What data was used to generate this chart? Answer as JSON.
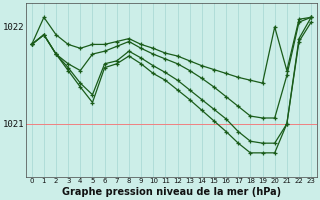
{
  "title": "Graphe pression niveau de la mer (hPa)",
  "background_color": "#cceee8",
  "grid_color_v": "#b0ddd8",
  "grid_color_h": "#f08080",
  "line_color": "#1a5c1a",
  "hours": [
    0,
    1,
    2,
    3,
    4,
    5,
    6,
    7,
    8,
    9,
    10,
    11,
    12,
    13,
    14,
    15,
    16,
    17,
    18,
    19,
    20,
    21,
    22,
    23
  ],
  "series": [
    [
      1021.82,
      1022.1,
      1021.92,
      1021.82,
      1021.78,
      1021.82,
      1021.82,
      1021.85,
      1021.88,
      1021.82,
      1021.78,
      1021.73,
      1021.7,
      1021.65,
      1021.6,
      1021.56,
      1021.52,
      1021.48,
      1021.45,
      1021.42,
      1022.0,
      1021.55,
      1022.08,
      1022.1
    ],
    [
      1021.82,
      1021.92,
      1021.72,
      1021.62,
      1021.55,
      1021.72,
      1021.75,
      1021.8,
      1021.85,
      1021.78,
      1021.72,
      1021.67,
      1021.62,
      1021.55,
      1021.47,
      1021.38,
      1021.28,
      1021.18,
      1021.08,
      1021.06,
      1021.06,
      1021.5,
      1022.05,
      1022.1
    ],
    [
      1021.82,
      1021.92,
      1021.72,
      1021.58,
      1021.42,
      1021.3,
      1021.62,
      1021.65,
      1021.75,
      1021.68,
      1021.6,
      1021.53,
      1021.45,
      1021.35,
      1021.25,
      1021.15,
      1021.05,
      1020.92,
      1020.82,
      1020.8,
      1020.8,
      1021.0,
      1021.88,
      1022.1
    ],
    [
      1021.82,
      1021.92,
      1021.72,
      1021.55,
      1021.38,
      1021.22,
      1021.58,
      1021.62,
      1021.7,
      1021.62,
      1021.52,
      1021.45,
      1021.35,
      1021.25,
      1021.14,
      1021.03,
      1020.92,
      1020.8,
      1020.7,
      1020.7,
      1020.7,
      1021.0,
      1021.85,
      1022.05
    ]
  ],
  "ytick_positions": [
    1021.0,
    1022.0
  ],
  "ytick_labels": [
    "1021",
    "1022"
  ],
  "ylim": [
    1020.45,
    1022.25
  ],
  "xlim": [
    -0.5,
    23.5
  ],
  "xtick_labels": [
    "0",
    "1",
    "2",
    "3",
    "4",
    "5",
    "6",
    "7",
    "8",
    "9",
    "10",
    "11",
    "12",
    "13",
    "14",
    "15",
    "16",
    "17",
    "18",
    "19",
    "20",
    "21",
    "22",
    "23"
  ],
  "hline_positions": [
    1021.0
  ],
  "vline_positions": [
    0,
    1,
    2,
    3,
    4,
    5,
    6,
    7,
    8,
    9,
    10,
    11,
    12,
    13,
    14,
    15,
    16,
    17,
    18,
    19,
    20,
    21,
    22,
    23
  ],
  "ytick_fontsize": 6.5,
  "xtick_fontsize": 5.0,
  "title_fontsize": 7.0,
  "linewidth": 0.9,
  "markersize": 3.5
}
